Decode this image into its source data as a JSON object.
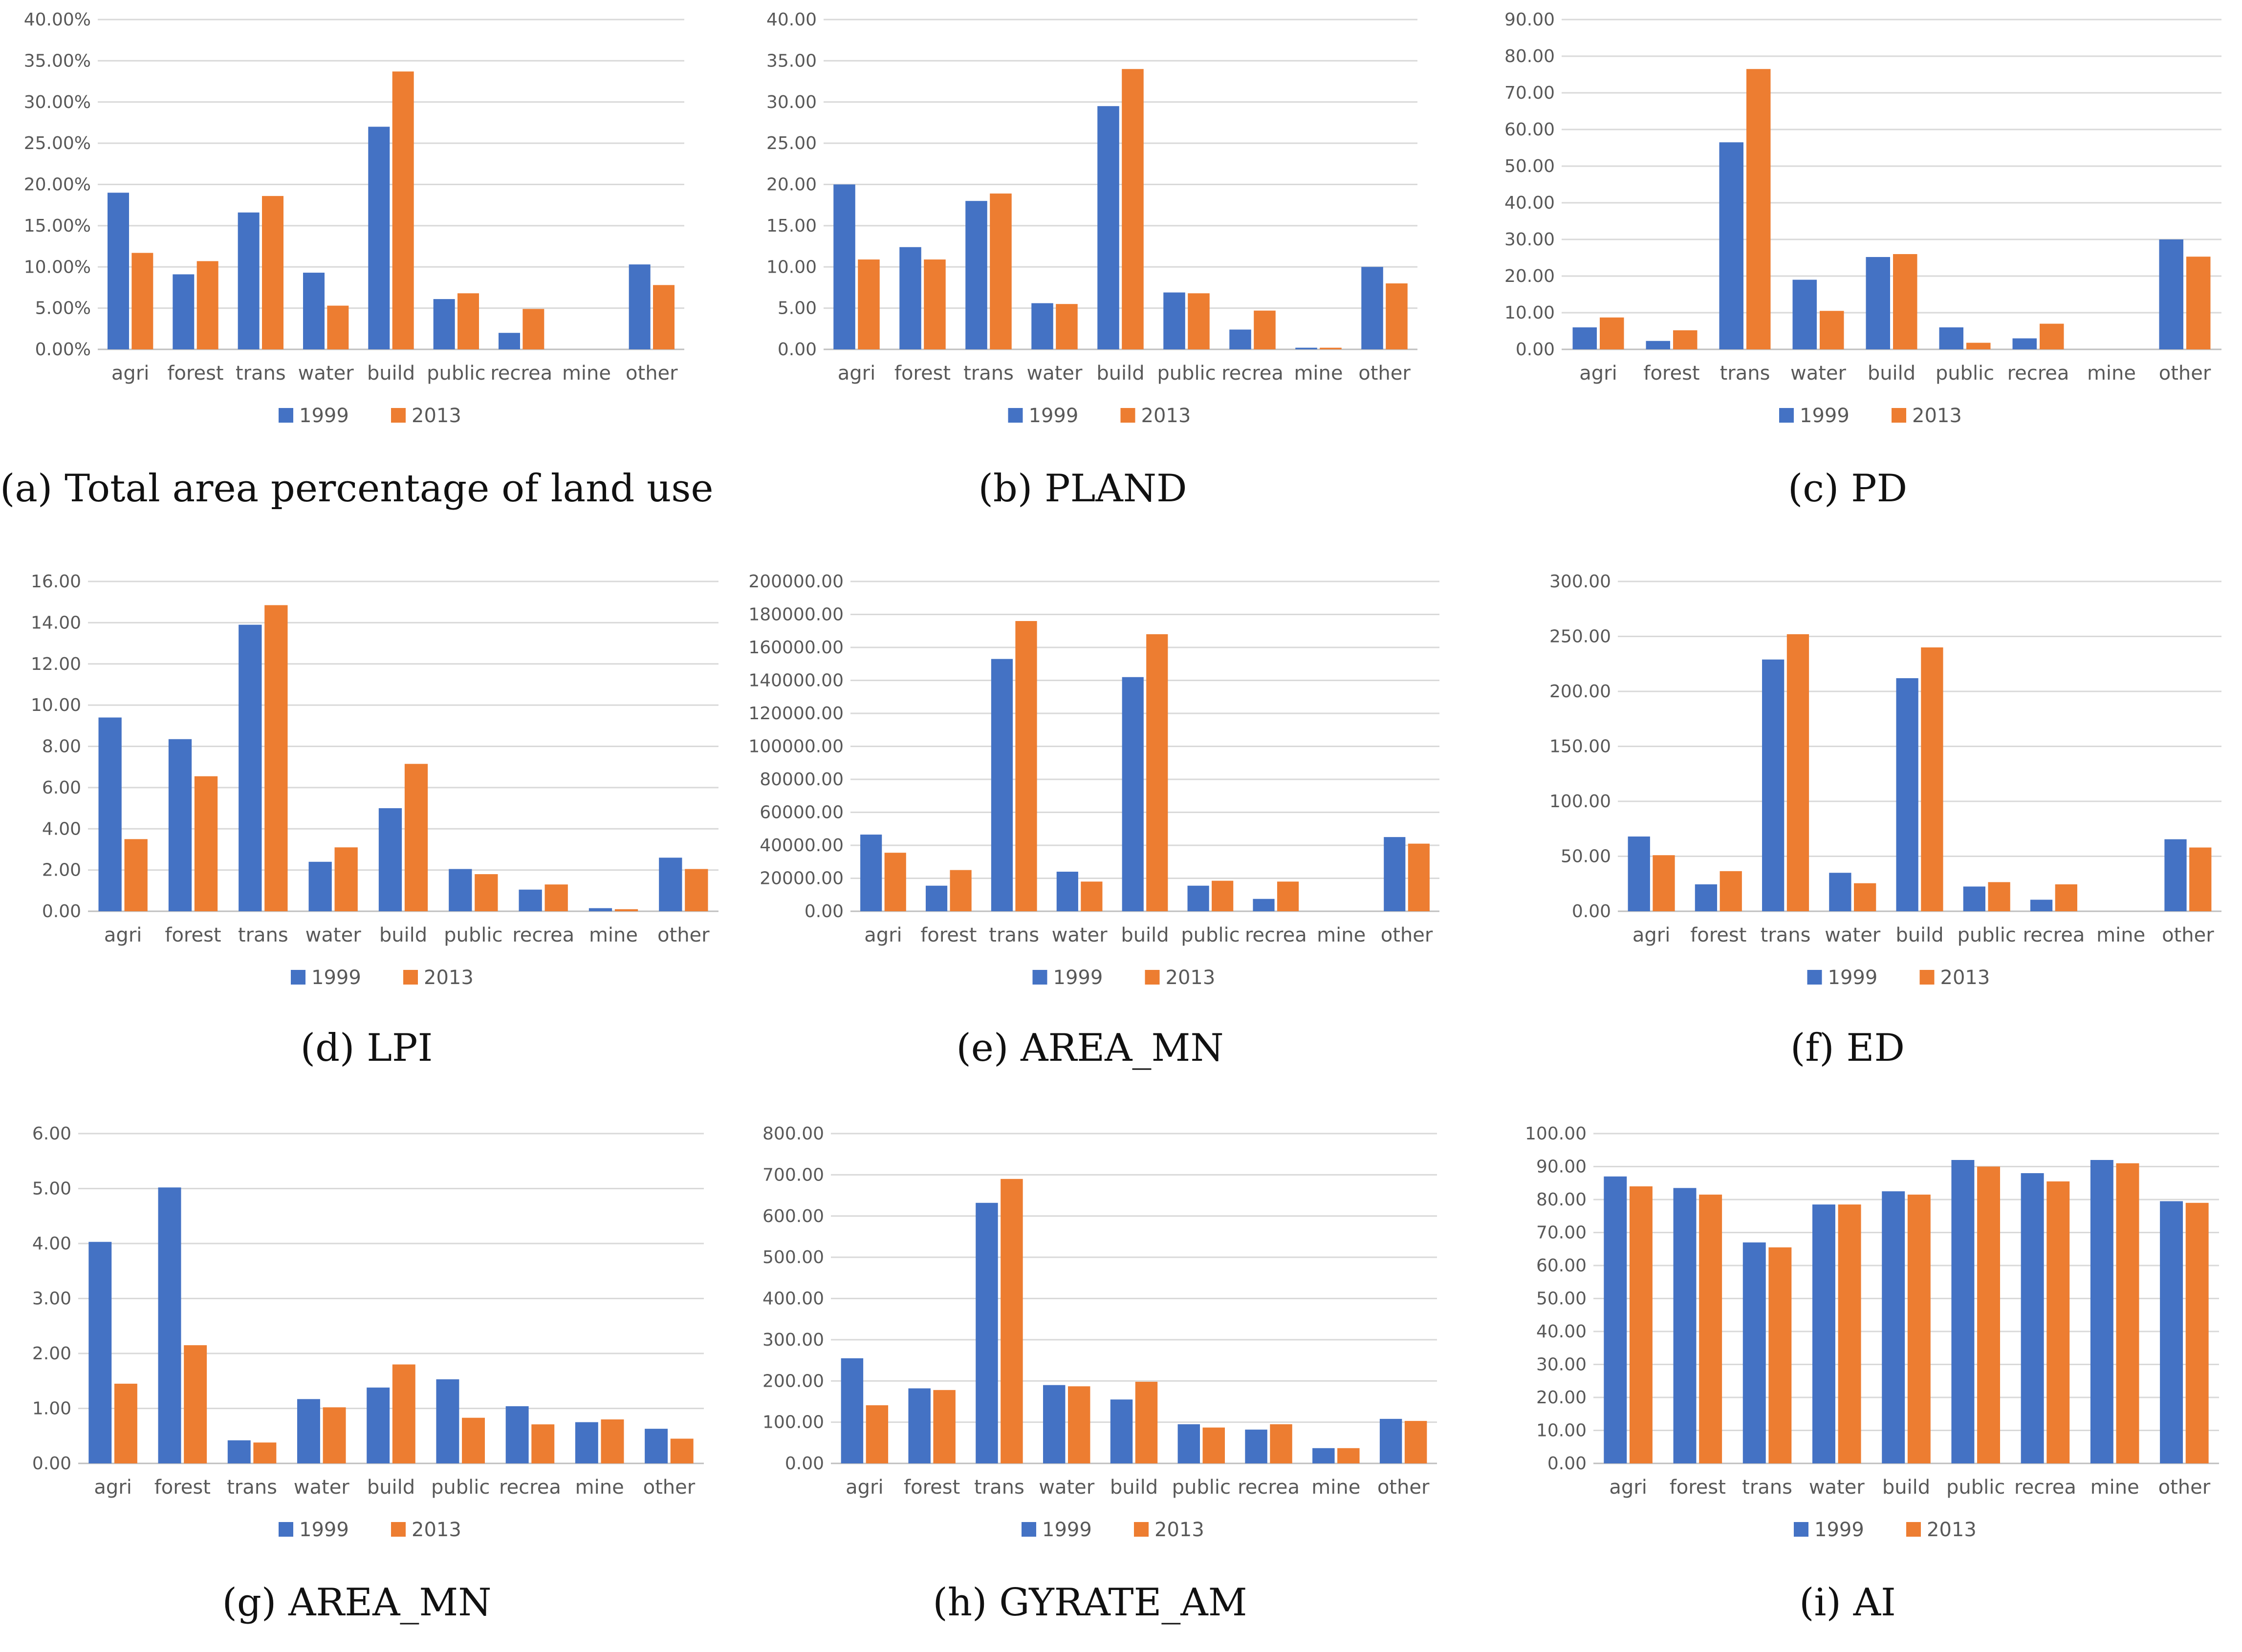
{
  "colors": {
    "s1999": "#4472C4",
    "s2013": "#ED7D31",
    "grid": "#D9D9D9",
    "text": "#595959"
  },
  "chart_data": [
    {
      "type": "bar",
      "caption": "(a) Total area percentage of land use",
      "categories": [
        "agri",
        "forest",
        "trans",
        "water",
        "build",
        "public",
        "recrea",
        "mine",
        "other"
      ],
      "series": [
        {
          "name": "1999",
          "values": [
            19.0,
            9.1,
            16.6,
            9.3,
            27.0,
            6.1,
            2.0,
            0.0,
            10.3
          ]
        },
        {
          "name": "2013",
          "values": [
            11.7,
            10.7,
            18.6,
            5.3,
            33.7,
            6.8,
            4.9,
            0.0,
            7.8
          ]
        }
      ],
      "ylim": [
        0,
        40
      ],
      "yticks": [
        "0.00%",
        "5.00%",
        "10.00%",
        "15.00%",
        "20.00%",
        "25.00%",
        "30.00%",
        "35.00%",
        "40.00%"
      ],
      "legend": "bottom"
    },
    {
      "type": "bar",
      "caption": "(b) PLAND",
      "categories": [
        "agri",
        "forest",
        "trans",
        "water",
        "build",
        "public",
        "recrea",
        "mine",
        "other"
      ],
      "series": [
        {
          "name": "1999",
          "values": [
            20.0,
            12.4,
            18.0,
            5.6,
            29.5,
            6.9,
            2.4,
            0.2,
            10.0
          ]
        },
        {
          "name": "2013",
          "values": [
            10.9,
            10.9,
            18.9,
            5.5,
            34.0,
            6.8,
            4.7,
            0.2,
            8.0
          ]
        }
      ],
      "ylim": [
        0,
        40
      ],
      "yticks": [
        "0.00",
        "5.00",
        "10.00",
        "15.00",
        "20.00",
        "25.00",
        "30.00",
        "35.00",
        "40.00"
      ],
      "legend": "bottom"
    },
    {
      "type": "bar",
      "caption": "(c) PD",
      "categories": [
        "agri",
        "forest",
        "trans",
        "water",
        "build",
        "public",
        "recrea",
        "mine",
        "other"
      ],
      "series": [
        {
          "name": "1999",
          "values": [
            6.0,
            2.3,
            56.5,
            19.0,
            25.2,
            6.0,
            3.0,
            0.0,
            30.0
          ]
        },
        {
          "name": "2013",
          "values": [
            8.7,
            5.2,
            76.5,
            10.5,
            26.0,
            1.8,
            7.0,
            0.0,
            25.3
          ]
        }
      ],
      "ylim": [
        0,
        90
      ],
      "yticks": [
        "0.00",
        "10.00",
        "20.00",
        "30.00",
        "40.00",
        "50.00",
        "60.00",
        "70.00",
        "80.00",
        "90.00"
      ],
      "legend": "bottom"
    },
    {
      "type": "bar",
      "caption": "(d) LPI",
      "categories": [
        "agri",
        "forest",
        "trans",
        "water",
        "build",
        "public",
        "recrea",
        "mine",
        "other"
      ],
      "series": [
        {
          "name": "1999",
          "values": [
            9.4,
            8.35,
            13.9,
            2.4,
            5.0,
            2.05,
            1.05,
            0.15,
            2.6
          ]
        },
        {
          "name": "2013",
          "values": [
            3.5,
            6.55,
            14.85,
            3.1,
            7.15,
            1.8,
            1.3,
            0.1,
            2.05
          ]
        }
      ],
      "ylim": [
        0,
        16
      ],
      "yticks": [
        "0.00",
        "2.00",
        "4.00",
        "6.00",
        "8.00",
        "10.00",
        "12.00",
        "14.00",
        "16.00"
      ],
      "legend": "bottom"
    },
    {
      "type": "bar",
      "caption": "(e) AREA_MN",
      "categories": [
        "agri",
        "forest",
        "trans",
        "water",
        "build",
        "public",
        "recrea",
        "mine",
        "other"
      ],
      "series": [
        {
          "name": "1999",
          "values": [
            46500,
            15500,
            153000,
            24000,
            142000,
            15500,
            7500,
            0,
            45000
          ]
        },
        {
          "name": "2013",
          "values": [
            35500,
            25000,
            176000,
            18000,
            168000,
            18500,
            18000,
            0,
            41000
          ]
        }
      ],
      "ylim": [
        0,
        200000
      ],
      "yticks": [
        "0.00",
        "20000.00",
        "40000.00",
        "60000.00",
        "80000.00",
        "100000.00",
        "120000.00",
        "140000.00",
        "160000.00",
        "180000.00",
        "200000.00"
      ],
      "legend": "bottom"
    },
    {
      "type": "bar",
      "caption": "(f) ED",
      "categories": [
        "agri",
        "forest",
        "trans",
        "water",
        "build",
        "public",
        "recrea",
        "mine",
        "other"
      ],
      "series": [
        {
          "name": "1999",
          "values": [
            68.0,
            24.5,
            229.0,
            35.0,
            212.0,
            22.5,
            10.5,
            0.0,
            65.5
          ]
        },
        {
          "name": "2013",
          "values": [
            51.0,
            36.5,
            252.0,
            25.5,
            240.0,
            26.5,
            24.5,
            0.0,
            58.0
          ]
        }
      ],
      "ylim": [
        0,
        300
      ],
      "yticks": [
        "0.00",
        "50.00",
        "100.00",
        "150.00",
        "200.00",
        "250.00",
        "300.00"
      ],
      "legend": "bottom"
    },
    {
      "type": "bar",
      "caption": "(g) AREA_MN",
      "categories": [
        "agri",
        "forest",
        "trans",
        "water",
        "build",
        "public",
        "recrea",
        "mine",
        "other"
      ],
      "series": [
        {
          "name": "1999",
          "values": [
            4.03,
            5.02,
            0.42,
            1.17,
            1.38,
            1.53,
            1.04,
            0.75,
            0.63
          ]
        },
        {
          "name": "2013",
          "values": [
            1.45,
            2.15,
            0.38,
            1.02,
            1.8,
            0.83,
            0.71,
            0.8,
            0.45
          ]
        }
      ],
      "ylim": [
        0,
        6
      ],
      "yticks": [
        "0.00",
        "1.00",
        "2.00",
        "3.00",
        "4.00",
        "5.00",
        "6.00"
      ],
      "legend": "bottom"
    },
    {
      "type": "bar",
      "caption": "(h) GYRATE_AM",
      "categories": [
        "agri",
        "forest",
        "trans",
        "water",
        "build",
        "public",
        "recrea",
        "mine",
        "other"
      ],
      "series": [
        {
          "name": "1999",
          "values": [
            255,
            182,
            632,
            190,
            155,
            95,
            82,
            37,
            108
          ]
        },
        {
          "name": "2013",
          "values": [
            141,
            178,
            690,
            187,
            198,
            87,
            95,
            37,
            103
          ]
        }
      ],
      "ylim": [
        0,
        800
      ],
      "yticks": [
        "0.00",
        "100.00",
        "200.00",
        "300.00",
        "400.00",
        "500.00",
        "600.00",
        "700.00",
        "800.00"
      ],
      "legend": "bottom"
    },
    {
      "type": "bar",
      "caption": "(i) AI",
      "categories": [
        "agri",
        "forest",
        "trans",
        "water",
        "build",
        "public",
        "recrea",
        "mine",
        "other"
      ],
      "series": [
        {
          "name": "1999",
          "values": [
            87.0,
            83.5,
            67.0,
            78.5,
            82.5,
            92.0,
            88.0,
            92.0,
            79.5
          ]
        },
        {
          "name": "2013",
          "values": [
            84.0,
            81.5,
            65.5,
            78.5,
            81.5,
            90.0,
            85.5,
            91.0,
            79.0
          ]
        }
      ],
      "ylim": [
        0,
        100
      ],
      "yticks": [
        "0.00",
        "10.00",
        "20.00",
        "30.00",
        "40.00",
        "50.00",
        "60.00",
        "70.00",
        "80.00",
        "90.00",
        "100.00"
      ],
      "legend": "bottom"
    }
  ]
}
